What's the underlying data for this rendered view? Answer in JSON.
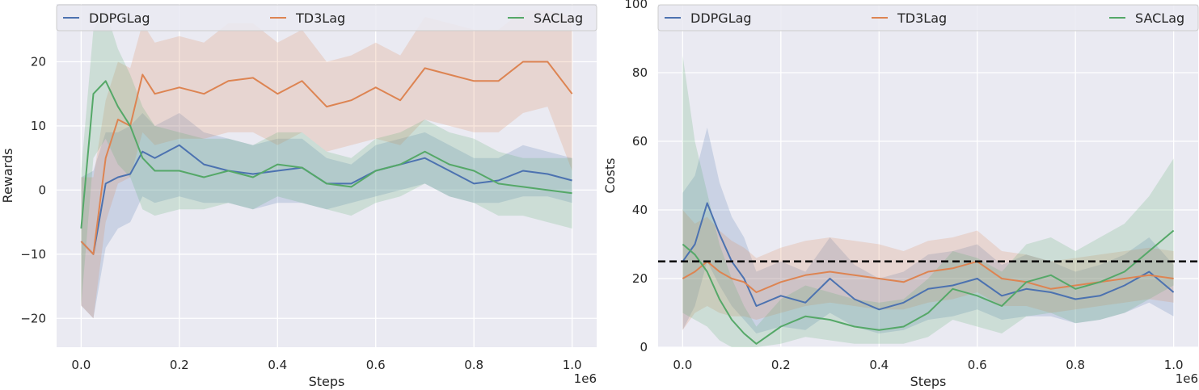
{
  "chart_data": [
    {
      "type": "line",
      "title": "",
      "xlabel": "Steps",
      "ylabel": "Rewards",
      "x_offset_label": "1e6",
      "xlim": [
        -0.05,
        1.05
      ],
      "ylim": [
        -24.5,
        29
      ],
      "xticks": [
        0.0,
        0.2,
        0.4,
        0.6,
        0.8,
        1.0
      ],
      "xtick_labels": [
        "0.0",
        "0.2",
        "0.4",
        "0.6",
        "0.8",
        "1.0"
      ],
      "yticks": [
        -20,
        -10,
        0,
        10,
        20
      ],
      "ytick_labels": [
        "−20",
        "−10",
        "0",
        "10",
        "20"
      ],
      "grid": true,
      "legend_position": "top",
      "x": [
        0.0,
        0.025,
        0.05,
        0.075,
        0.1,
        0.125,
        0.15,
        0.2,
        0.25,
        0.3,
        0.35,
        0.4,
        0.45,
        0.5,
        0.55,
        0.6,
        0.65,
        0.7,
        0.75,
        0.8,
        0.85,
        0.9,
        0.95,
        1.0
      ],
      "series": [
        {
          "name": "DDPGLag",
          "color": "#4c72b0",
          "values": [
            -8,
            -10,
            1,
            2,
            2.5,
            6,
            5,
            7,
            4,
            3,
            2.5,
            3,
            3.5,
            1,
            1,
            3,
            4,
            5,
            3,
            1,
            1.5,
            3,
            2.5,
            1.5
          ],
          "lower": [
            -18,
            -20,
            -9,
            -6,
            -5,
            -1,
            -2,
            -1,
            -2,
            -2,
            -3,
            -2,
            -2,
            -3,
            -2,
            -1,
            0,
            1,
            -1,
            -2,
            -2,
            -1,
            -1,
            -2
          ],
          "upper": [
            2,
            3,
            9,
            9,
            10,
            12,
            10,
            12,
            9,
            8,
            7,
            8,
            8,
            5,
            4,
            7,
            8,
            9,
            7,
            5,
            5,
            7,
            6,
            5
          ]
        },
        {
          "name": "TD3Lag",
          "color": "#dd8452",
          "values": [
            -8,
            -10,
            5,
            11,
            10,
            18,
            15,
            16,
            15,
            17,
            17.5,
            15,
            17,
            13,
            14,
            16,
            14,
            19,
            18,
            17,
            17,
            20,
            20,
            15
          ],
          "lower": [
            -18,
            -20,
            -5,
            1,
            2,
            9,
            7,
            8,
            8,
            9,
            9,
            7,
            9,
            6,
            7,
            8,
            7,
            11,
            10,
            9,
            9,
            12,
            13,
            3
          ],
          "upper": [
            2,
            2,
            14,
            20,
            19,
            26,
            23,
            24,
            23,
            26,
            26,
            23,
            25,
            20,
            21,
            23,
            21,
            27,
            26,
            25,
            25,
            28,
            28,
            27
          ]
        },
        {
          "name": "SACLag",
          "color": "#55a868",
          "values": [
            -6,
            15,
            17,
            13,
            10,
            5,
            3,
            3,
            2,
            3,
            2,
            4,
            3.5,
            1,
            0.5,
            3,
            4,
            6,
            4,
            3,
            1,
            0.5,
            0,
            -0.5
          ],
          "lower": [
            -18,
            5,
            8,
            4,
            2,
            -3,
            -4,
            -3,
            -3,
            -2,
            -3,
            -1,
            -2,
            -3,
            -4,
            -2,
            -1,
            1,
            -1,
            -2,
            -4,
            -4,
            -5,
            -6
          ],
          "upper": [
            3,
            25,
            28,
            22,
            18,
            13,
            10,
            9,
            8,
            8,
            7,
            9,
            9,
            6,
            5,
            8,
            9,
            11,
            9,
            8,
            6,
            5,
            5,
            5
          ]
        }
      ]
    },
    {
      "type": "line",
      "title": "",
      "xlabel": "Steps",
      "ylabel": "Costs",
      "x_offset_label": "1e6",
      "xlim": [
        -0.05,
        1.05
      ],
      "ylim": [
        0,
        100
      ],
      "xticks": [
        0.0,
        0.2,
        0.4,
        0.6,
        0.8,
        1.0
      ],
      "xtick_labels": [
        "0.0",
        "0.2",
        "0.4",
        "0.6",
        "0.8",
        "1.0"
      ],
      "yticks": [
        0,
        20,
        40,
        60,
        80,
        100
      ],
      "ytick_labels": [
        "0",
        "20",
        "40",
        "60",
        "80",
        "100"
      ],
      "grid": true,
      "legend_position": "top",
      "threshold": 25,
      "x": [
        0.0,
        0.025,
        0.05,
        0.075,
        0.1,
        0.125,
        0.15,
        0.2,
        0.25,
        0.3,
        0.35,
        0.4,
        0.45,
        0.5,
        0.55,
        0.6,
        0.65,
        0.7,
        0.75,
        0.8,
        0.85,
        0.9,
        0.95,
        1.0
      ],
      "series": [
        {
          "name": "DDPGLag",
          "color": "#4c72b0",
          "values": [
            25,
            30,
            42,
            33,
            25,
            20,
            12,
            15,
            13,
            20,
            14,
            11,
            13,
            17,
            18,
            20,
            15,
            17,
            16,
            14,
            15,
            18,
            22,
            16
          ],
          "lower": [
            5,
            12,
            25,
            18,
            12,
            8,
            4,
            6,
            5,
            10,
            6,
            4,
            5,
            8,
            9,
            11,
            8,
            9,
            9,
            7,
            8,
            10,
            13,
            9
          ],
          "upper": [
            45,
            50,
            64,
            48,
            38,
            32,
            22,
            25,
            22,
            32,
            24,
            20,
            22,
            27,
            28,
            30,
            24,
            27,
            25,
            22,
            24,
            27,
            32,
            24
          ]
        },
        {
          "name": "TD3Lag",
          "color": "#dd8452",
          "values": [
            20,
            22,
            25,
            22,
            20,
            19,
            16,
            19,
            21,
            22,
            21,
            20,
            19,
            22,
            23,
            25,
            20,
            19,
            17,
            18,
            19,
            20,
            21,
            20
          ],
          "lower": [
            5,
            10,
            12,
            10,
            9,
            9,
            8,
            10,
            12,
            13,
            12,
            11,
            11,
            13,
            14,
            16,
            12,
            12,
            10,
            11,
            12,
            13,
            14,
            13
          ],
          "upper": [
            40,
            36,
            38,
            34,
            31,
            29,
            26,
            29,
            31,
            32,
            31,
            30,
            28,
            31,
            32,
            34,
            28,
            27,
            25,
            26,
            27,
            28,
            29,
            28
          ]
        },
        {
          "name": "SACLag",
          "color": "#55a868",
          "values": [
            30,
            27,
            22,
            14,
            8,
            4,
            1,
            6,
            9,
            8,
            6,
            5,
            6,
            10,
            17,
            15,
            12,
            19,
            21,
            17,
            19,
            22,
            28,
            34
          ],
          "lower": [
            10,
            8,
            6,
            2,
            0,
            0,
            0,
            1,
            3,
            2,
            1,
            1,
            1,
            3,
            8,
            6,
            4,
            9,
            10,
            7,
            8,
            10,
            14,
            18
          ],
          "upper": [
            85,
            60,
            45,
            30,
            20,
            12,
            6,
            14,
            18,
            16,
            14,
            13,
            14,
            20,
            28,
            26,
            22,
            30,
            32,
            28,
            32,
            36,
            44,
            55
          ]
        }
      ]
    }
  ]
}
